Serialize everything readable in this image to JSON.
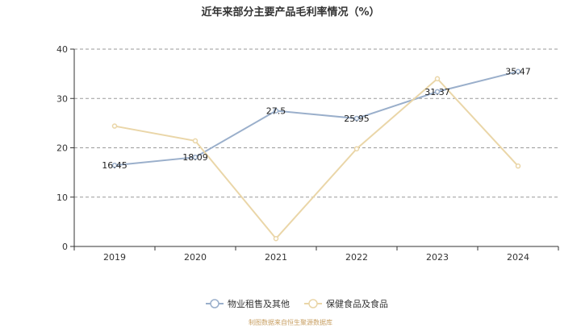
{
  "chart_data": {
    "type": "line",
    "title": "近年来部分主要产品毛利率情况（%）",
    "categories": [
      "2019",
      "2020",
      "2021",
      "2022",
      "2023",
      "2024"
    ],
    "series": [
      {
        "name": "物业租售及其他",
        "values": [
          16.45,
          18.09,
          27.5,
          25.95,
          31.37,
          35.47
        ],
        "labels": [
          "16.45",
          "18.09",
          "27.5",
          "25.95",
          "31.37",
          "35.47"
        ],
        "color": "#9aafcb"
      },
      {
        "name": "保健食品及食品",
        "values": [
          24.4,
          21.4,
          1.6,
          19.8,
          34.0,
          16.3
        ],
        "labels": [
          "",
          "",
          "",
          "",
          "",
          ""
        ],
        "color": "#ead6a8"
      }
    ],
    "ylim": [
      0,
      40
    ],
    "yticks": [
      0,
      10,
      20,
      30,
      40
    ],
    "ytick_labels": [
      "0",
      "10",
      "20",
      "30",
      "40"
    ],
    "grid": true,
    "legend_position": "bottom-center"
  },
  "footer": "制图数据来自恒生聚源数据库"
}
